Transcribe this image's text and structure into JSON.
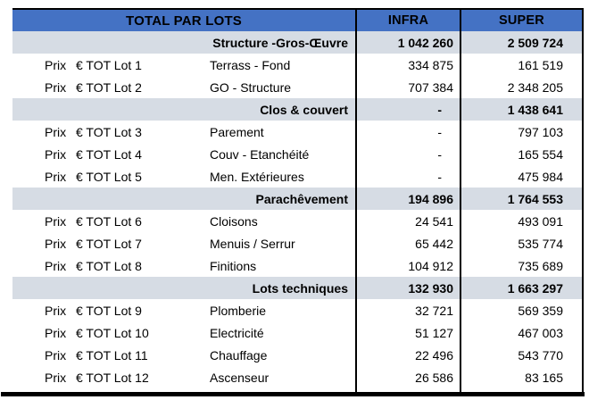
{
  "colors": {
    "header_bg": "#4472C4",
    "section_bg": "#D6DCE4",
    "border": "#000000",
    "text": "#000000"
  },
  "header": {
    "col1": "TOTAL PAR LOTS",
    "col2": "INFRA",
    "col3": "SUPER"
  },
  "rows": [
    {
      "type": "section",
      "label": "Structure -Gros-Œuvre",
      "infra": "1 042 260",
      "super": "2 509 724"
    },
    {
      "type": "lot",
      "prefix": "Prix",
      "code": "€ TOT Lot 1",
      "desc": "Terrass - Fond",
      "infra": "334 875",
      "super": "161 519"
    },
    {
      "type": "lot",
      "prefix": "Prix",
      "code": "€ TOT Lot 2",
      "desc": "GO - Structure",
      "infra": "707 384",
      "super": "2 348 205"
    },
    {
      "type": "section",
      "label": "Clos & couvert",
      "infra": "-",
      "super": "1 438 641"
    },
    {
      "type": "lot",
      "prefix": "Prix",
      "code": "€ TOT Lot 3",
      "desc": "Parement",
      "infra": "-",
      "super": "797 103"
    },
    {
      "type": "lot",
      "prefix": "Prix",
      "code": "€ TOT Lot 4",
      "desc": "Couv - Etanchéité",
      "infra": "-",
      "super": "165 554"
    },
    {
      "type": "lot",
      "prefix": "Prix",
      "code": "€ TOT Lot 5",
      "desc": "Men. Extérieures",
      "infra": "-",
      "super": "475 984"
    },
    {
      "type": "section",
      "label": "Parachêvement",
      "infra": "194 896",
      "super": "1 764 553"
    },
    {
      "type": "lot",
      "prefix": "Prix",
      "code": "€ TOT Lot 6",
      "desc": "Cloisons",
      "infra": "24 541",
      "super": "493 091"
    },
    {
      "type": "lot",
      "prefix": "Prix",
      "code": "€ TOT Lot 7",
      "desc": "Menuis / Serrur",
      "infra": "65 442",
      "super": "535 774"
    },
    {
      "type": "lot",
      "prefix": "Prix",
      "code": "€ TOT Lot 8",
      "desc": "Finitions",
      "infra": "104 912",
      "super": "735 689"
    },
    {
      "type": "section",
      "label": "Lots techniques",
      "infra": "132 930",
      "super": "1 663 297"
    },
    {
      "type": "lot",
      "prefix": "Prix",
      "code": "€ TOT Lot 9",
      "desc": "Plomberie",
      "infra": "32 721",
      "super": "569 359"
    },
    {
      "type": "lot",
      "prefix": "Prix",
      "code": "€ TOT Lot 10",
      "desc": "Electricité",
      "infra": "51 127",
      "super": "467 003"
    },
    {
      "type": "lot",
      "prefix": "Prix",
      "code": "€ TOT Lot 11",
      "desc": "Chauffage",
      "infra": "22 496",
      "super": "543 770"
    },
    {
      "type": "lot",
      "prefix": "Prix",
      "code": "€ TOT Lot 12",
      "desc": "Ascenseur",
      "infra": "26 586",
      "super": "83 165"
    }
  ]
}
